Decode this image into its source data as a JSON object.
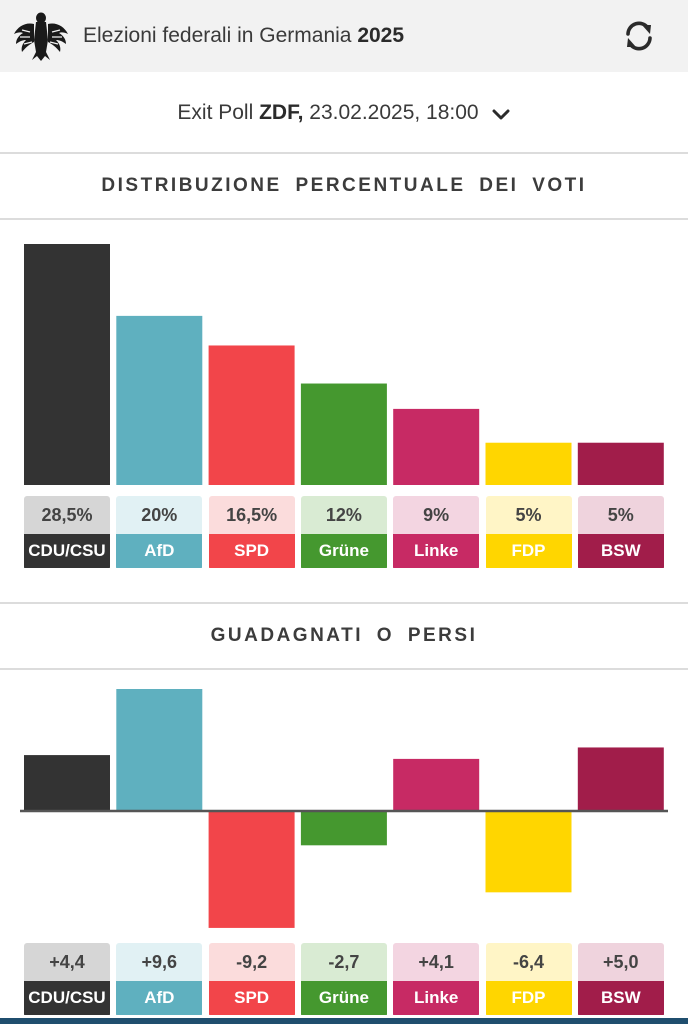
{
  "header": {
    "title_prefix": "Elezioni federali in Germania",
    "title_year": "2025",
    "logo_icon": "federal-eagle-icon",
    "refresh_icon": "refresh-icon"
  },
  "poll_selector": {
    "prefix": "Exit Poll",
    "source": "ZDF,",
    "datetime": "23.02.2025, 18:00",
    "dropdown_icon": "chevron-down-icon"
  },
  "sections": {
    "vote_share_title": "DISTRIBUZIONE PERCENTUALE DEI VOTI",
    "gains_title": "GUADAGNATI O PERSI"
  },
  "parties": [
    {
      "name": "CDU/CSU",
      "color": "#333333",
      "light": "#d6d6d6",
      "text": "#ffffff"
    },
    {
      "name": "AfD",
      "color": "#5fb0bf",
      "light": "#e1f1f4",
      "text": "#ffffff"
    },
    {
      "name": "SPD",
      "color": "#f2454a",
      "light": "#fbdcdc",
      "text": "#ffffff"
    },
    {
      "name": "Grüne",
      "color": "#45982f",
      "light": "#d9ebd3",
      "text": "#ffffff"
    },
    {
      "name": "Linke",
      "color": "#c72a64",
      "light": "#f3d5e1",
      "text": "#ffffff"
    },
    {
      "name": "FDP",
      "color": "#ffd600",
      "light": "#fff5c6",
      "text": "#ffffff"
    },
    {
      "name": "BSW",
      "color": "#a11d4a",
      "light": "#efd3dd",
      "text": "#ffffff"
    }
  ],
  "chart_data": [
    {
      "type": "bar",
      "title": "DISTRIBUZIONE PERCENTUALE DEI VOTI",
      "categories": [
        "CDU/CSU",
        "AfD",
        "SPD",
        "Grüne",
        "Linke",
        "FDP",
        "BSW"
      ],
      "values": [
        28.5,
        20,
        16.5,
        12,
        9,
        5,
        5
      ],
      "value_labels": [
        "28,5%",
        "20%",
        "16,5%",
        "12%",
        "9%",
        "5%",
        "5%"
      ],
      "ylim": [
        0,
        28.5
      ],
      "grid": false
    },
    {
      "type": "bar",
      "title": "GUADAGNATI O PERSI",
      "categories": [
        "CDU/CSU",
        "AfD",
        "SPD",
        "Grüne",
        "Linke",
        "FDP",
        "BSW"
      ],
      "values": [
        4.4,
        9.6,
        -9.2,
        -2.7,
        4.1,
        -6.4,
        5.0
      ],
      "value_labels": [
        "+4,4",
        "+9,6",
        "-9,2",
        "-2,7",
        "+4,1",
        "-6,4",
        "+5,0"
      ],
      "ylim": [
        -9.6,
        9.6
      ],
      "grid": false
    }
  ]
}
